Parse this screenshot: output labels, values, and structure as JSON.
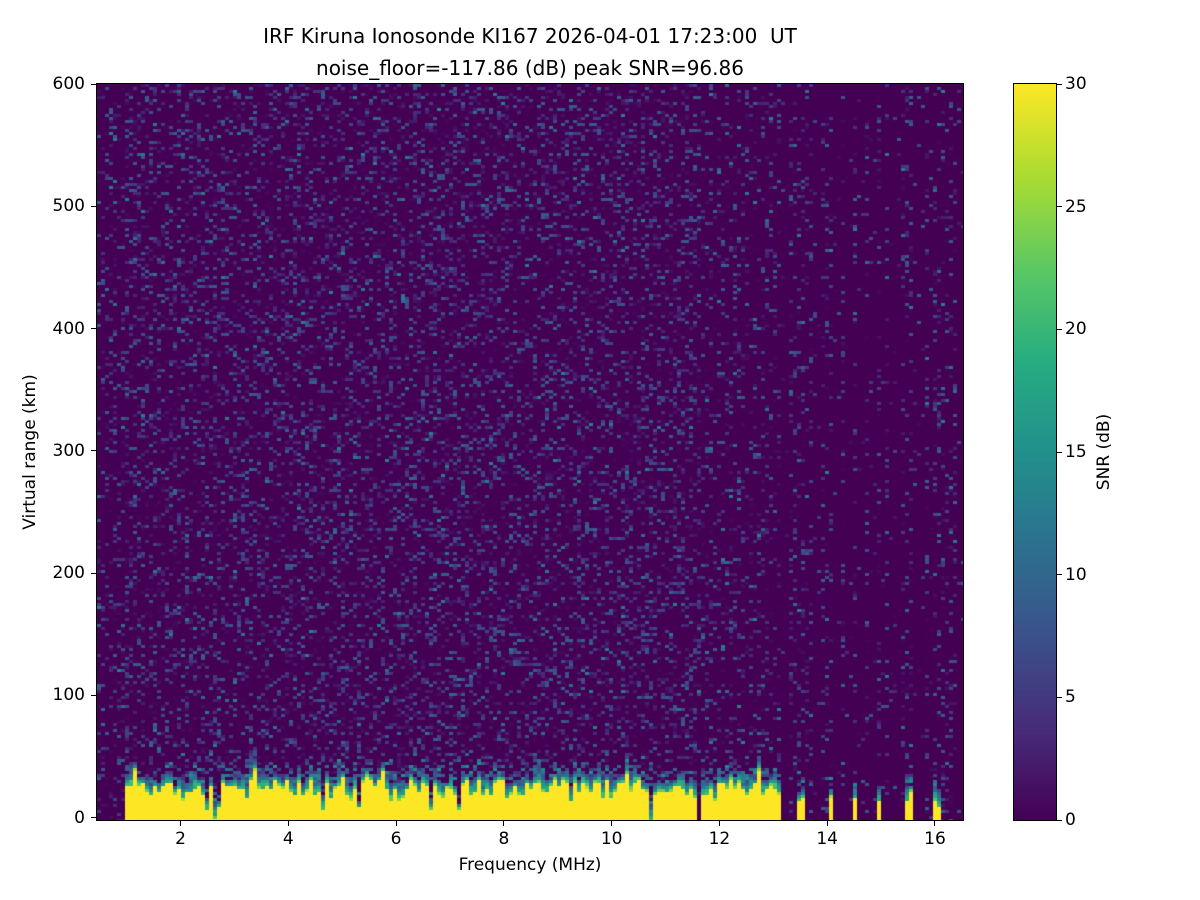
{
  "chart_data": {
    "type": "heatmap",
    "title": "IRF Kiruna Ionosonde KI167 2026-04-01 17:23:00  UT",
    "subtitle": "noise_floor=-117.86 (dB) peak SNR=96.86",
    "xlabel": "Frequency (MHz)",
    "ylabel": "Virtual range (km)",
    "value_label": "SNR (dB)",
    "xlim": [
      0.45,
      16.52
    ],
    "ylim": [
      -2,
      600
    ],
    "value_range": [
      0,
      30
    ],
    "x_ticks": [
      2,
      4,
      6,
      8,
      10,
      12,
      14,
      16
    ],
    "y_ticks": [
      0,
      100,
      200,
      300,
      400,
      500,
      600
    ],
    "colorbar_ticks": [
      0,
      5,
      10,
      15,
      20,
      25,
      30
    ],
    "colormap": "viridis",
    "noise_floor_db": -117.86,
    "peak_snr_db": 96.86,
    "background_snr_db": 0,
    "speckle": {
      "density_main": 0.3,
      "density_left_margin": 0.18,
      "density_rf_columns": 0.16,
      "density_quiet": 0.03,
      "max_snr_db": 13
    },
    "ground_echo_band": {
      "freq_start_mhz": 1.0,
      "freq_end_mhz": 11.6,
      "snr_db": 30,
      "top_range_km_mean": 32,
      "top_range_km_jitter": 12,
      "fringe_km": 10
    },
    "discrete_stripe_freqs_mhz": [
      11.72,
      11.87,
      12.02,
      12.17,
      12.32,
      12.47,
      12.62,
      12.77,
      12.92,
      13.07,
      13.52,
      14.07,
      14.52,
      14.97,
      15.52,
      16.02
    ],
    "rf_interference_freqs_mhz": [
      11.72,
      11.87,
      12.02,
      12.17,
      12.32,
      12.47,
      12.62,
      12.77,
      12.92,
      13.07,
      13.35,
      13.52,
      13.67,
      13.95,
      14.07,
      14.3,
      14.52,
      14.75,
      14.97,
      15.1,
      15.4,
      15.52,
      15.85,
      16.02,
      16.2,
      16.35
    ],
    "stripe_halfwidth_mhz": 0.06,
    "render_seed": 167
  }
}
